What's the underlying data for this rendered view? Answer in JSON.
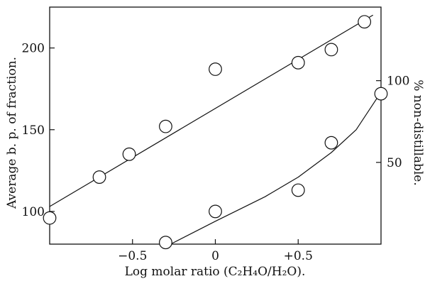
{
  "chart_data": {
    "type": "scatter",
    "xlabel": "Log molar ratio (C₂H₄O/H₂O).",
    "ylabel_left": "Average b. p. of fraction.",
    "ylabel_right": "% non-distillable.",
    "xlim": [
      -1.0,
      1.0
    ],
    "ylim_left": [
      80,
      225
    ],
    "ylim_right": [
      0,
      145
    ],
    "x_ticks": [
      {
        "value": -0.5,
        "label": "−0.5"
      },
      {
        "value": 0,
        "label": "0"
      },
      {
        "value": 0.5,
        "label": "+0.5"
      }
    ],
    "y_ticks_left": [
      {
        "value": 100,
        "label": "100"
      },
      {
        "value": 150,
        "label": "150"
      },
      {
        "value": 200,
        "label": "200"
      }
    ],
    "y_ticks_right": [
      {
        "value": 50,
        "label": "50"
      },
      {
        "value": 100,
        "label": "100"
      }
    ],
    "grid": false,
    "series": [
      {
        "axis": "left",
        "points": [
          {
            "x": -1.0,
            "y": 96
          },
          {
            "x": -0.7,
            "y": 121
          },
          {
            "x": -0.52,
            "y": 135
          },
          {
            "x": -0.3,
            "y": 152
          },
          {
            "x": 0.0,
            "y": 187
          },
          {
            "x": 0.5,
            "y": 191
          },
          {
            "x": 0.7,
            "y": 199
          },
          {
            "x": 0.9,
            "y": 216
          }
        ],
        "fit": [
          {
            "x": -1.0,
            "y": 103
          },
          {
            "x": 0.95,
            "y": 220
          }
        ]
      },
      {
        "axis": "right",
        "points": [
          {
            "x": -0.3,
            "y": 1
          },
          {
            "x": 0.0,
            "y": 20
          },
          {
            "x": 0.5,
            "y": 33
          },
          {
            "x": 0.7,
            "y": 62
          },
          {
            "x": 1.0,
            "y": 92
          }
        ],
        "fit": [
          {
            "x": -0.27,
            "y": 0
          },
          {
            "x": 0.0,
            "y": 14
          },
          {
            "x": 0.3,
            "y": 29
          },
          {
            "x": 0.5,
            "y": 41
          },
          {
            "x": 0.7,
            "y": 56
          },
          {
            "x": 0.85,
            "y": 70
          },
          {
            "x": 1.0,
            "y": 93
          }
        ]
      }
    ]
  }
}
